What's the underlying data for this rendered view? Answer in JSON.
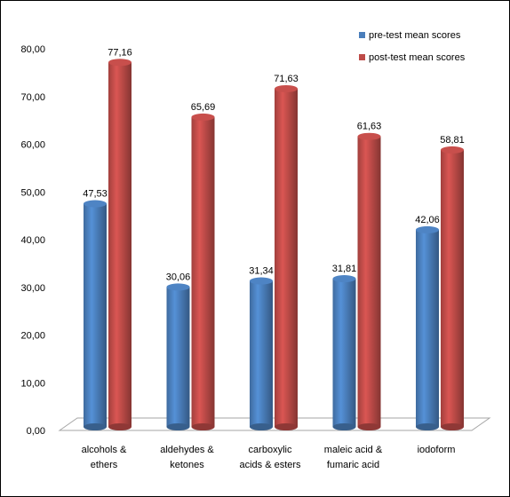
{
  "chart_data": {
    "type": "bar",
    "categories": [
      [
        "alcohols &",
        "ethers"
      ],
      [
        "aldehydes &",
        "ketones"
      ],
      [
        "carboxylic",
        "acids & esters"
      ],
      [
        "maleic acid &",
        "fumaric acid"
      ],
      [
        "iodoform"
      ]
    ],
    "series": [
      {
        "name": "pre-test mean scores",
        "color": "#4a7ebb",
        "values": [
          47.53,
          30.06,
          31.34,
          31.81,
          42.06
        ],
        "labels": [
          "47,53",
          "30,06",
          "31,34",
          "31,81",
          "42,06"
        ]
      },
      {
        "name": "post-test mean scores",
        "color": "#be4b48",
        "values": [
          77.16,
          65.69,
          71.63,
          61.63,
          58.81
        ],
        "labels": [
          "77,16",
          "65,69",
          "71,63",
          "61,63",
          "58,81"
        ]
      }
    ],
    "ylim": [
      0,
      80
    ],
    "yticks": [
      "0,00",
      "10,00",
      "20,00",
      "30,00",
      "40,00",
      "50,00",
      "60,00",
      "70,00",
      "80,00"
    ],
    "grid": false,
    "legend": "top-right"
  }
}
